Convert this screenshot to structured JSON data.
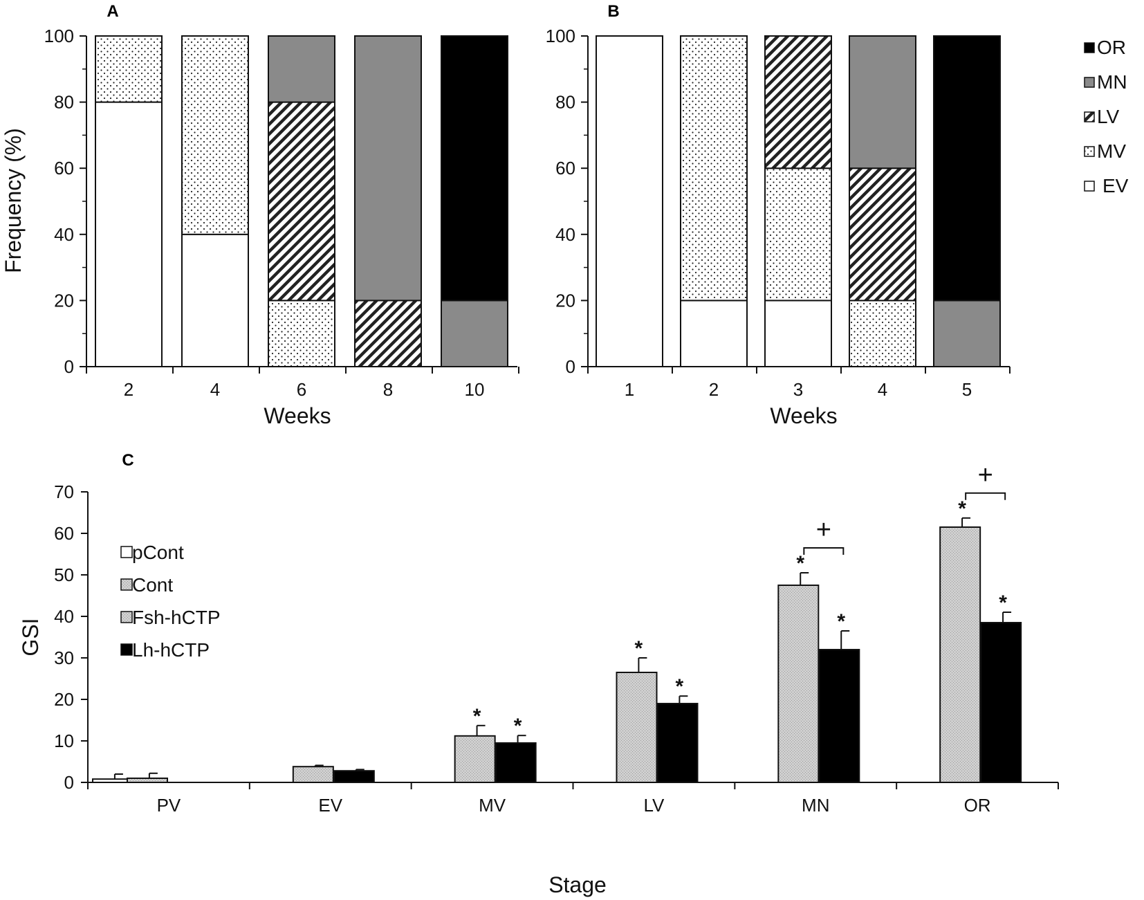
{
  "chart_data": [
    {
      "panel": "A",
      "type": "bar",
      "stacked": true,
      "title": "",
      "xlabel": "Weeks",
      "ylabel": "Frequency (%)",
      "ylim": [
        0,
        100
      ],
      "yticks": [
        0,
        20,
        40,
        60,
        80,
        100
      ],
      "categories": [
        "2",
        "4",
        "6",
        "8",
        "10"
      ],
      "series": [
        {
          "name": "EV",
          "pattern": "white",
          "values": [
            80,
            40,
            0,
            0,
            0
          ]
        },
        {
          "name": "MV",
          "pattern": "dots",
          "values": [
            20,
            60,
            20,
            0,
            0
          ]
        },
        {
          "name": "LV",
          "pattern": "hatch",
          "values": [
            0,
            0,
            60,
            20,
            0
          ]
        },
        {
          "name": "MN",
          "pattern": "gray",
          "values": [
            0,
            0,
            20,
            80,
            20
          ]
        },
        {
          "name": "OR",
          "pattern": "black",
          "values": [
            0,
            0,
            0,
            0,
            80
          ]
        }
      ]
    },
    {
      "panel": "B",
      "type": "bar",
      "stacked": true,
      "title": "",
      "xlabel": "Weeks",
      "ylabel": "",
      "ylim": [
        0,
        100
      ],
      "yticks": [
        0,
        20,
        40,
        60,
        80,
        100
      ],
      "categories": [
        "1",
        "2",
        "3",
        "4",
        "5"
      ],
      "series": [
        {
          "name": "EV",
          "pattern": "white",
          "values": [
            100,
            20,
            20,
            0,
            0
          ]
        },
        {
          "name": "MV",
          "pattern": "dots",
          "values": [
            0,
            80,
            40,
            20,
            0
          ]
        },
        {
          "name": "LV",
          "pattern": "hatch",
          "values": [
            0,
            0,
            40,
            40,
            0
          ]
        },
        {
          "name": "MN",
          "pattern": "gray",
          "values": [
            0,
            0,
            0,
            40,
            20
          ]
        },
        {
          "name": "OR",
          "pattern": "black",
          "values": [
            0,
            0,
            0,
            0,
            80
          ]
        }
      ],
      "legend": {
        "placement": "right",
        "entries": [
          "OR",
          "MN",
          "LV",
          "MV",
          "EV"
        ]
      }
    },
    {
      "panel": "C",
      "type": "bar",
      "stacked": false,
      "title": "",
      "xlabel": "Stage",
      "ylabel": "GSI",
      "ylim": [
        0,
        70
      ],
      "yticks": [
        0,
        10,
        20,
        30,
        40,
        50,
        60,
        70
      ],
      "categories": [
        "PV",
        "EV",
        "MV",
        "LV",
        "MN",
        "OR"
      ],
      "series": [
        {
          "name": "pCont",
          "pattern": "white",
          "values": [
            0.8,
            null,
            null,
            null,
            null,
            null
          ],
          "errors": [
            1.2,
            null,
            null,
            null,
            null,
            null
          ]
        },
        {
          "name": "Cont",
          "pattern": "lightgray",
          "values": [
            1.0,
            null,
            null,
            null,
            null,
            null
          ],
          "errors": [
            1.2,
            null,
            null,
            null,
            null,
            null
          ]
        },
        {
          "name": "Fsh-hCTP",
          "pattern": "lightgray",
          "values": [
            null,
            3.8,
            11.2,
            26.5,
            47.5,
            61.5
          ],
          "errors": [
            null,
            0.3,
            2.5,
            3.5,
            3.0,
            2.2
          ],
          "sig": [
            false,
            false,
            true,
            true,
            true,
            true
          ]
        },
        {
          "name": "Lh-hCTP",
          "pattern": "black",
          "values": [
            null,
            2.8,
            9.5,
            19.0,
            32.0,
            38.5
          ],
          "errors": [
            null,
            0.3,
            1.8,
            1.8,
            4.5,
            2.5
          ],
          "sig": [
            false,
            false,
            true,
            true,
            true,
            true
          ]
        }
      ],
      "comparisons": [
        {
          "category": "MN",
          "symbol": "+"
        },
        {
          "category": "OR",
          "symbol": "+"
        }
      ],
      "star_symbol": "*",
      "legend": {
        "placement": "top-left",
        "entries": [
          "pCont",
          "Cont",
          "Fsh-hCTP",
          "Lh-hCTP"
        ]
      }
    }
  ]
}
